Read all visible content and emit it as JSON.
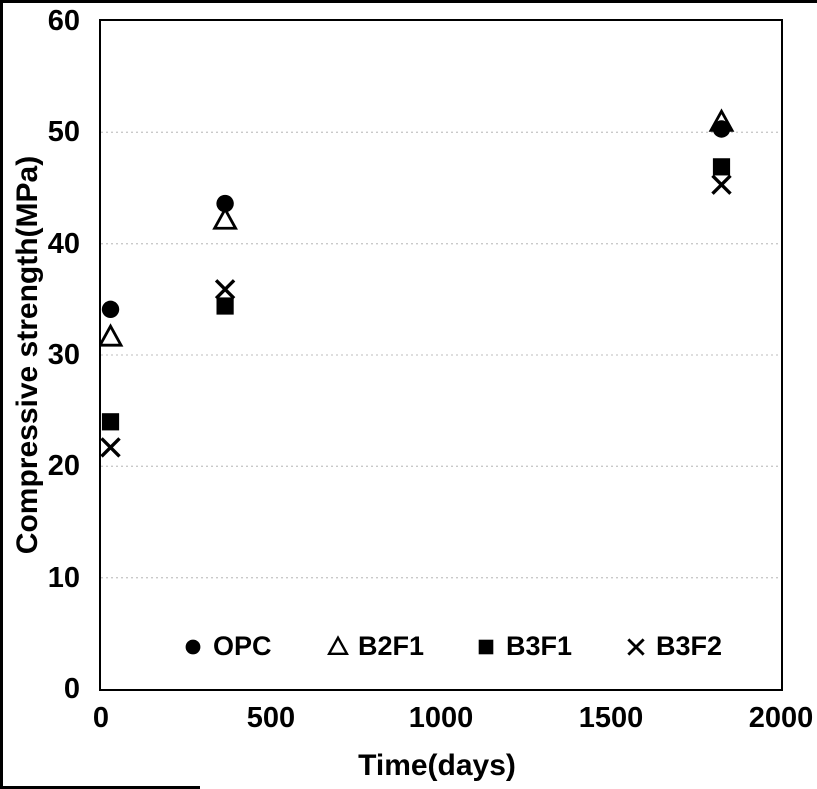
{
  "chart_data": {
    "type": "scatter",
    "title": "",
    "xlabel": "Time(days)",
    "ylabel": "Compressive strength(MPa)",
    "xlim": [
      0,
      2000
    ],
    "ylim": [
      0,
      60
    ],
    "x_ticks": [
      0,
      500,
      1000,
      1500,
      2000
    ],
    "y_ticks": [
      0,
      10,
      20,
      30,
      40,
      50,
      60
    ],
    "grid": "horizontal-dotted",
    "x": [
      28,
      365,
      1825
    ],
    "series": [
      {
        "name": "OPC",
        "marker": "circle-filled",
        "values": [
          34.1,
          43.6,
          50.3
        ]
      },
      {
        "name": "B2F1",
        "marker": "triangle-open",
        "values": [
          31.6,
          42.1,
          50.9
        ]
      },
      {
        "name": "B3F1",
        "marker": "square-filled",
        "values": [
          24.0,
          34.4,
          46.9
        ]
      },
      {
        "name": "B3F2",
        "marker": "x-cross",
        "values": [
          21.7,
          35.9,
          45.3
        ]
      }
    ],
    "legend": {
      "position": "inside-bottom-row",
      "items": [
        "OPC",
        "B2F1",
        "B3F1",
        "B3F2"
      ]
    },
    "colors": {
      "foreground": "#000000",
      "gridline": "#c9c9c9",
      "background": "#ffffff"
    }
  }
}
